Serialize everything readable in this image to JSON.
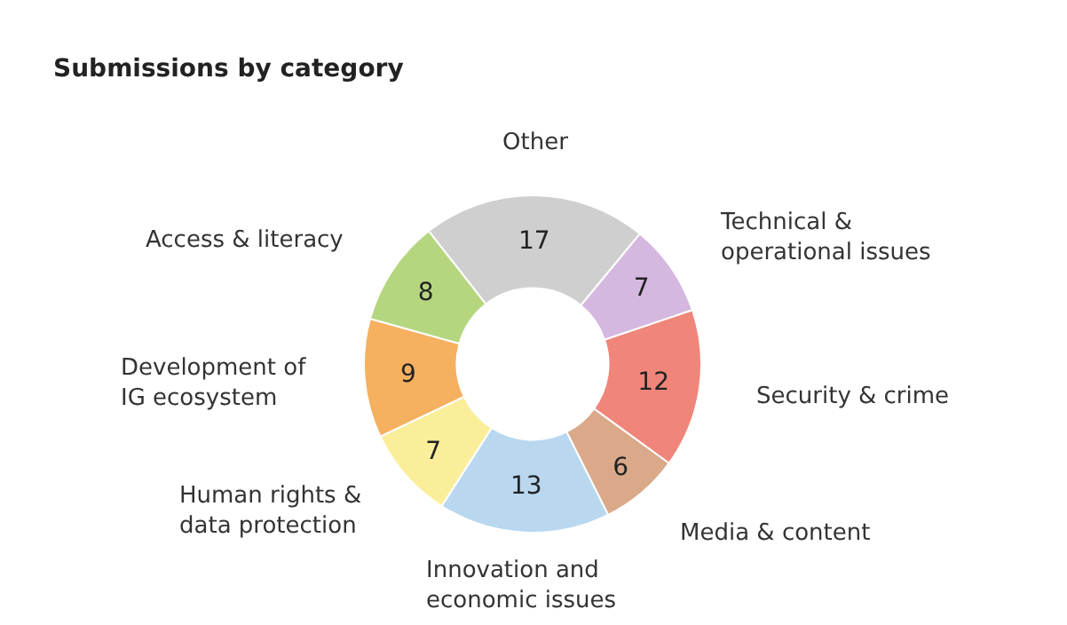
{
  "chart_data": {
    "type": "donut",
    "title": "Submissions by category",
    "categories": [
      "Other",
      "Technical &\noperational issues",
      "Security & crime",
      "Media & content",
      "Innovation and\neconomic issues",
      "Human rights &\ndata protection",
      "Development of\nIG ecosystem",
      "Access & literacy"
    ],
    "values": [
      17,
      7,
      12,
      6,
      13,
      7,
      9,
      8
    ],
    "colors": [
      "#d0cfcf",
      "#d5b8e0",
      "#f0857a",
      "#d9a98a",
      "#b9d8f0",
      "#fbee9a",
      "#f5b060",
      "#b5d67f"
    ],
    "data_labels": true,
    "legend": false
  }
}
